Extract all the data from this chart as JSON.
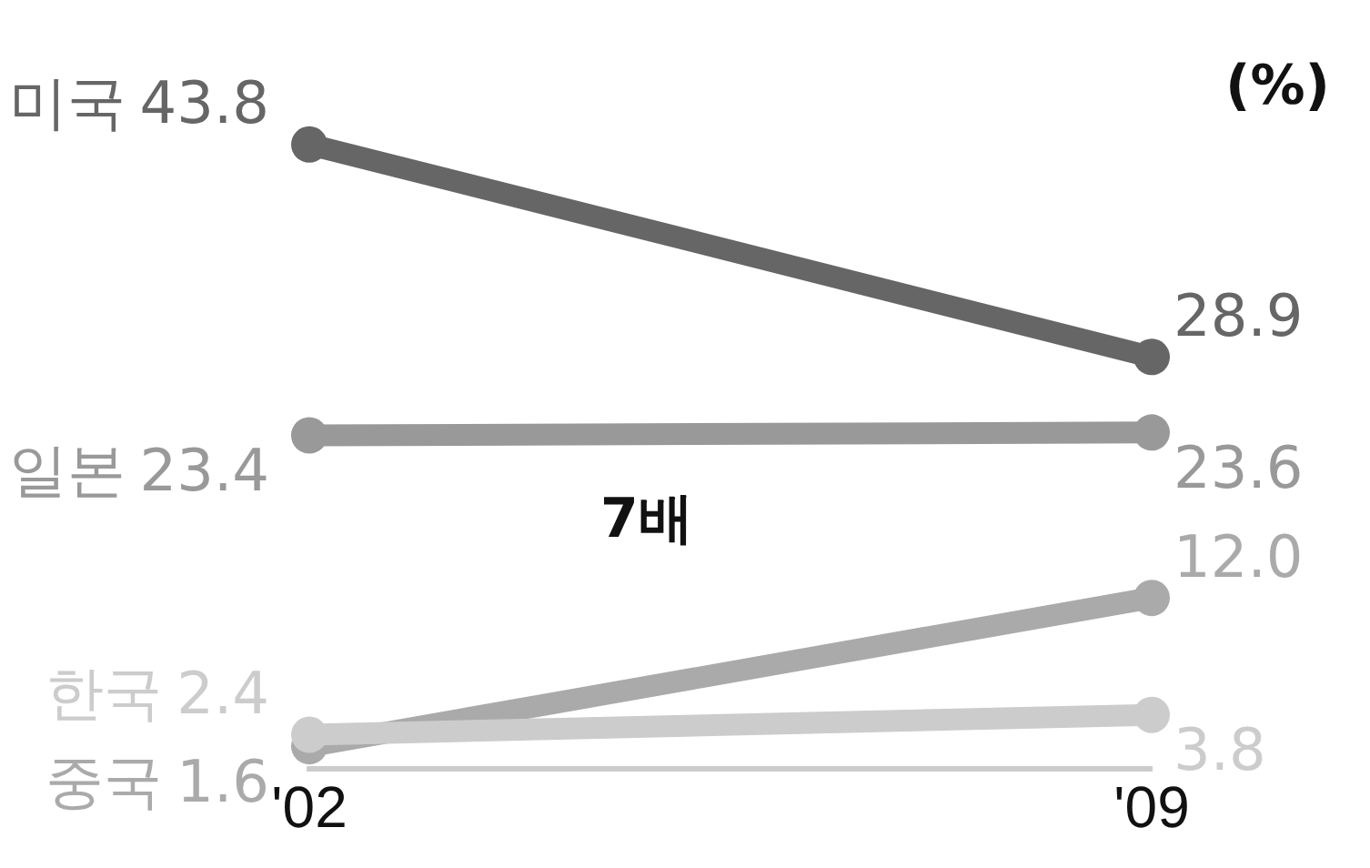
{
  "chart_data": {
    "type": "line",
    "categories": [
      "'02",
      "'09"
    ],
    "series": [
      {
        "name": "미국",
        "color": "#666666",
        "values": [
          43.8,
          28.9
        ],
        "value_labels": [
          "43.8",
          "28.9"
        ]
      },
      {
        "name": "일본",
        "color": "#999999",
        "values": [
          23.4,
          23.6
        ],
        "value_labels": [
          "23.4",
          "23.6"
        ]
      },
      {
        "name": "한국",
        "color": "#cccccc",
        "values": [
          2.4,
          3.8
        ],
        "value_labels": [
          "2.4",
          "3.8"
        ]
      },
      {
        "name": "중국",
        "color": "#aaaaaa",
        "values": [
          1.6,
          12.0
        ],
        "value_labels": [
          "1.6",
          "12.0"
        ]
      }
    ],
    "marker": "circle",
    "line_style": "solid",
    "legend": false,
    "tick_labels": "x",
    "annotations": [
      "(%)",
      "7배"
    ]
  }
}
